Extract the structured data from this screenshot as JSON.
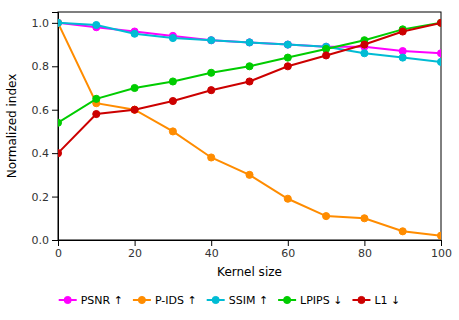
{
  "chart_data": {
    "type": "line",
    "x_label": "Kernel size",
    "y_label": "Normalized index",
    "x": [
      0,
      10,
      20,
      30,
      40,
      50,
      60,
      70,
      80,
      90,
      100
    ],
    "series": [
      {
        "name": "PSNR ↑",
        "color": "#ff00ff",
        "values": [
          1.0,
          0.98,
          0.96,
          0.94,
          0.92,
          0.91,
          0.9,
          0.89,
          0.89,
          0.87,
          0.86
        ]
      },
      {
        "name": "P-IDS ↑",
        "color": "#ff8c00",
        "values": [
          1.0,
          0.63,
          0.6,
          0.5,
          0.38,
          0.3,
          0.19,
          0.11,
          0.1,
          0.04,
          0.02
        ]
      },
      {
        "name": "SSIM ↑",
        "color": "#00bcd4",
        "values": [
          1.0,
          0.99,
          0.95,
          0.93,
          0.92,
          0.91,
          0.9,
          0.89,
          0.86,
          0.84,
          0.82
        ]
      },
      {
        "name": "LPIPS ↓",
        "color": "#00cc00",
        "values": [
          0.54,
          0.65,
          0.7,
          0.73,
          0.77,
          0.8,
          0.84,
          0.88,
          0.92,
          0.97,
          1.0
        ]
      },
      {
        "name": "L1 ↓",
        "color": "#cc0000",
        "values": [
          0.4,
          0.58,
          0.6,
          0.64,
          0.69,
          0.73,
          0.8,
          0.85,
          0.9,
          0.96,
          1.0
        ]
      }
    ],
    "xlim": [
      0,
      100
    ],
    "ylim": [
      0,
      1.05
    ],
    "xticks": [
      0,
      20,
      40,
      60,
      80,
      100
    ],
    "yticks": [
      {
        "value": 0,
        "label": "0.0"
      },
      0.2,
      0.4,
      0.6,
      0.8,
      {
        "value": 1.0,
        "label": "1.0"
      }
    ],
    "marker": "circle",
    "grid": false,
    "legend": "bottom"
  }
}
